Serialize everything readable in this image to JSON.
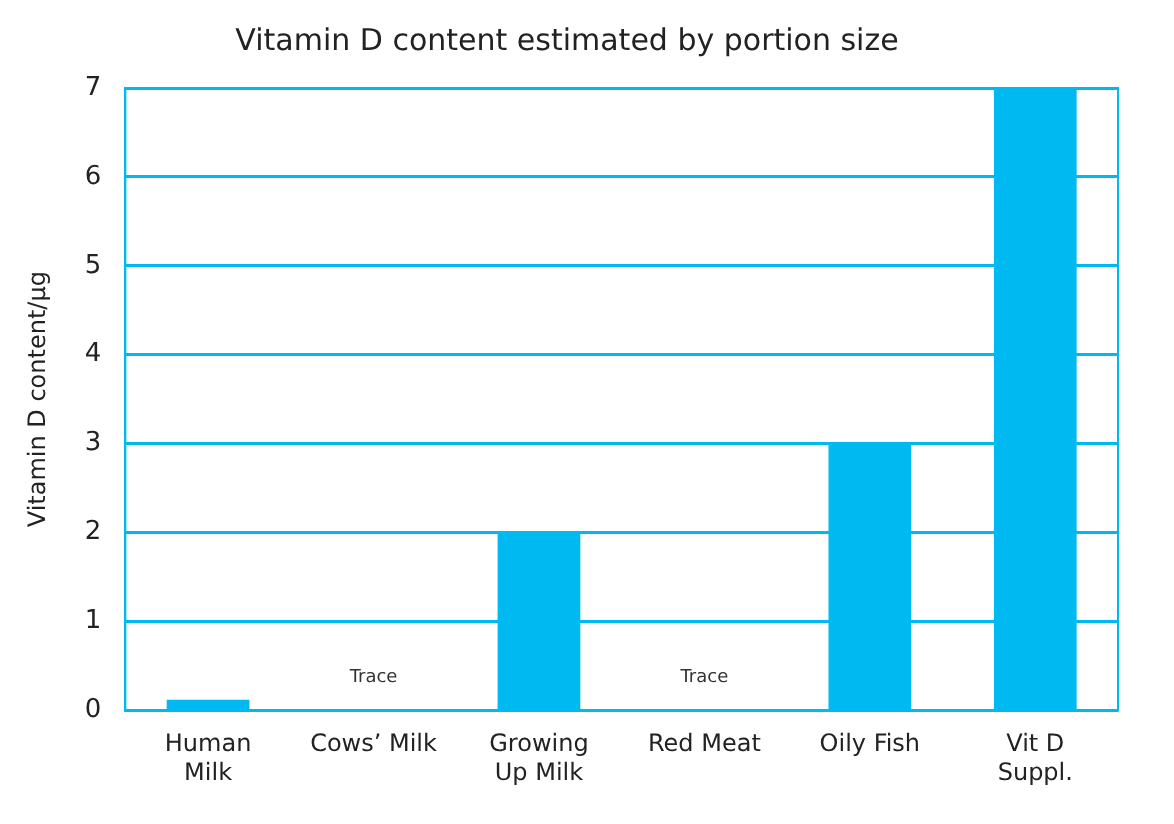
{
  "chart_data": {
    "type": "bar",
    "title": "Vitamin D content estimated by portion size",
    "ylabel": "Vitamin D content/µg",
    "categories": [
      "Human\nMilk",
      "Cows’ Milk",
      "Growing\nUp Milk",
      "Red Meat",
      "Oily Fish",
      "Vit D\nSuppl."
    ],
    "values": [
      0.12,
      null,
      2,
      null,
      3,
      7
    ],
    "value_labels": [
      null,
      "Trace",
      null,
      "Trace",
      null,
      null
    ],
    "color": "#00b9f0",
    "ylim": [
      0,
      7
    ],
    "yticks": [
      0,
      1,
      2,
      3,
      4,
      5,
      6,
      7
    ],
    "grid": "y",
    "legend": false
  }
}
